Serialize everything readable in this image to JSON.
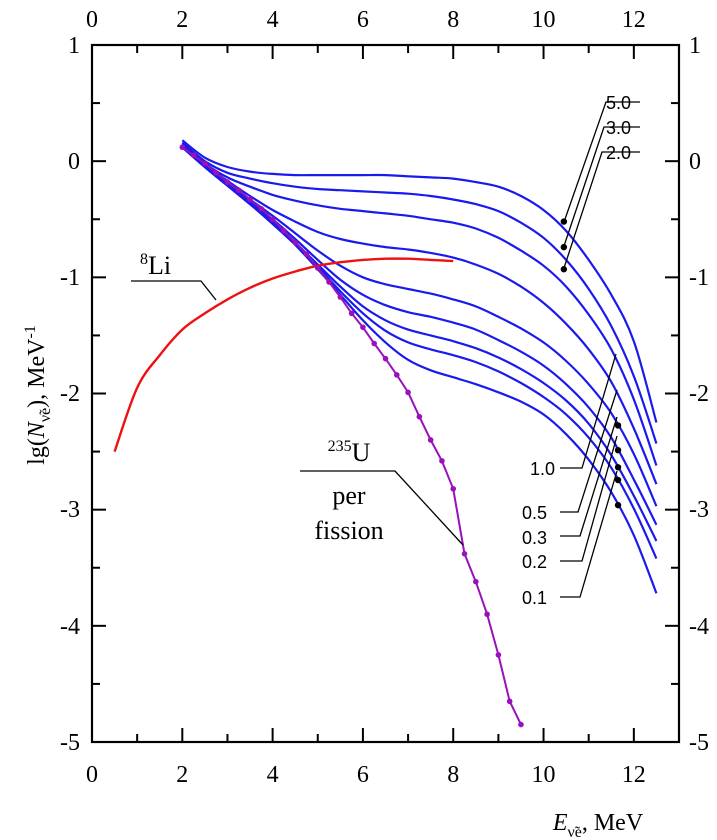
{
  "chart_data": {
    "type": "line",
    "title": "",
    "xlabel": {
      "symbol": "E",
      "subscript": "ν̃e",
      "unit": ", MeV"
    },
    "ylabel": {
      "prefix": "lg(",
      "symbol": "N",
      "subscript": "ν̃e",
      "suffix": "), MeV",
      "exponent": "-1"
    },
    "xlim": [
      0,
      13
    ],
    "ylim": [
      -5,
      1
    ],
    "x_ticks": [
      0,
      2,
      4,
      6,
      8,
      10,
      12
    ],
    "y_ticks": [
      1,
      0,
      -1,
      -2,
      -3,
      -4,
      -5
    ],
    "x_tick_labels": [
      "0",
      "2",
      "4",
      "6",
      "8",
      "10",
      "12"
    ],
    "y_tick_labels": [
      "1",
      "0",
      "-1",
      "-2",
      "-3",
      "-4",
      "-5"
    ],
    "grid": false,
    "colors": {
      "li8": "#ee1111",
      "u235": "#9911bb",
      "family": "#1a1aee",
      "marker": "#000000"
    },
    "li8": {
      "label_mass": "8",
      "label_element": "Li",
      "x": [
        0.5,
        1,
        1.5,
        2,
        2.5,
        3,
        3.5,
        4,
        4.5,
        5,
        5.5,
        6,
        6.5,
        7,
        7.5,
        8
      ],
      "y": [
        -2.5,
        -1.95,
        -1.67,
        -1.45,
        -1.31,
        -1.19,
        -1.09,
        -1.01,
        -0.95,
        -0.9,
        -0.87,
        -0.85,
        -0.84,
        -0.84,
        -0.85,
        -0.86
      ]
    },
    "u235": {
      "label_mass": "235",
      "label_element": "U",
      "label_line2": "per",
      "label_line3": "fission",
      "x": [
        2,
        2.25,
        2.5,
        2.75,
        3,
        3.25,
        3.5,
        3.75,
        4,
        4.25,
        4.5,
        4.75,
        5,
        5.25,
        5.5,
        5.75,
        6,
        6.25,
        6.5,
        6.75,
        7,
        7.25,
        7.5,
        7.75,
        8,
        8.25,
        8.5,
        8.75,
        9,
        9.25,
        9.5
      ],
      "y": [
        0.12,
        0.05,
        -0.02,
        -0.1,
        -0.18,
        -0.25,
        -0.33,
        -0.41,
        -0.5,
        -0.6,
        -0.7,
        -0.8,
        -0.92,
        -1.04,
        -1.17,
        -1.31,
        -1.43,
        -1.57,
        -1.7,
        -1.84,
        -1.99,
        -2.2,
        -2.4,
        -2.58,
        -2.82,
        -3.38,
        -3.62,
        -3.9,
        -4.25,
        -4.65,
        -4.85
      ]
    },
    "family": {
      "x": [
        2,
        2.5,
        3,
        3.5,
        4,
        4.5,
        5,
        5.5,
        6,
        6.5,
        7,
        7.5,
        8,
        8.5,
        9,
        9.5,
        10,
        10.5,
        11,
        11.5,
        12,
        12.5
      ],
      "marker_x_upper": 10.45,
      "marker_x_lower": 11.65,
      "series": [
        {
          "name": "5.0",
          "labeled": true,
          "marker_y": -0.52,
          "y": [
            0.18,
            0.03,
            -0.05,
            -0.09,
            -0.11,
            -0.12,
            -0.12,
            -0.12,
            -0.12,
            -0.12,
            -0.13,
            -0.14,
            -0.15,
            -0.18,
            -0.22,
            -0.3,
            -0.42,
            -0.6,
            -0.85,
            -1.15,
            -1.55,
            -2.25
          ]
        },
        {
          "name": "3.0",
          "labeled": true,
          "marker_y": -0.74,
          "y": [
            0.16,
            0.0,
            -0.1,
            -0.15,
            -0.19,
            -0.22,
            -0.24,
            -0.25,
            -0.26,
            -0.27,
            -0.28,
            -0.3,
            -0.33,
            -0.37,
            -0.43,
            -0.53,
            -0.66,
            -0.85,
            -1.1,
            -1.42,
            -1.85,
            -2.43
          ]
        },
        {
          "name": "2.0",
          "labeled": true,
          "marker_y": -0.93,
          "y": [
            0.15,
            -0.02,
            -0.14,
            -0.22,
            -0.29,
            -0.34,
            -0.38,
            -0.41,
            -0.43,
            -0.45,
            -0.47,
            -0.5,
            -0.53,
            -0.58,
            -0.66,
            -0.77,
            -0.9,
            -1.08,
            -1.32,
            -1.62,
            -2.05,
            -2.62
          ]
        },
        {
          "name": "",
          "labeled": false,
          "y": [
            0.14,
            -0.03,
            -0.17,
            -0.3,
            -0.42,
            -0.52,
            -0.61,
            -0.67,
            -0.71,
            -0.74,
            -0.76,
            -0.79,
            -0.83,
            -0.89,
            -0.97,
            -1.08,
            -1.22,
            -1.4,
            -1.62,
            -1.9,
            -2.3,
            -2.78
          ]
        },
        {
          "name": "1.0",
          "labeled": true,
          "y": [
            0.13,
            -0.04,
            -0.19,
            -0.33,
            -0.47,
            -0.62,
            -0.77,
            -0.9,
            -1.0,
            -1.06,
            -1.1,
            -1.14,
            -1.19,
            -1.25,
            -1.34,
            -1.44,
            -1.56,
            -1.72,
            -1.92,
            -2.17,
            -2.52,
            -2.97
          ]
        },
        {
          "name": "0.5",
          "labeled": true,
          "y": [
            0.12,
            -0.05,
            -0.2,
            -0.35,
            -0.5,
            -0.67,
            -0.85,
            -1.02,
            -1.15,
            -1.24,
            -1.3,
            -1.34,
            -1.39,
            -1.45,
            -1.54,
            -1.64,
            -1.76,
            -1.92,
            -2.12,
            -2.38,
            -2.74,
            -3.13
          ]
        },
        {
          "name": "0.3",
          "labeled": true,
          "y": [
            0.12,
            -0.05,
            -0.21,
            -0.36,
            -0.52,
            -0.7,
            -0.89,
            -1.08,
            -1.25,
            -1.37,
            -1.45,
            -1.5,
            -1.55,
            -1.61,
            -1.69,
            -1.79,
            -1.91,
            -2.06,
            -2.26,
            -2.53,
            -2.88,
            -3.27
          ]
        },
        {
          "name": "0.2",
          "labeled": true,
          "y": [
            0.12,
            -0.05,
            -0.21,
            -0.37,
            -0.53,
            -0.71,
            -0.91,
            -1.12,
            -1.31,
            -1.46,
            -1.56,
            -1.62,
            -1.67,
            -1.73,
            -1.81,
            -1.91,
            -2.03,
            -2.18,
            -2.38,
            -2.64,
            -2.99,
            -3.42
          ]
        },
        {
          "name": "0.1",
          "labeled": true,
          "y": [
            0.12,
            -0.05,
            -0.21,
            -0.37,
            -0.54,
            -0.72,
            -0.93,
            -1.15,
            -1.37,
            -1.56,
            -1.71,
            -1.8,
            -1.86,
            -1.92,
            -1.99,
            -2.07,
            -2.18,
            -2.35,
            -2.57,
            -2.85,
            -3.22,
            -3.72
          ]
        }
      ]
    }
  }
}
